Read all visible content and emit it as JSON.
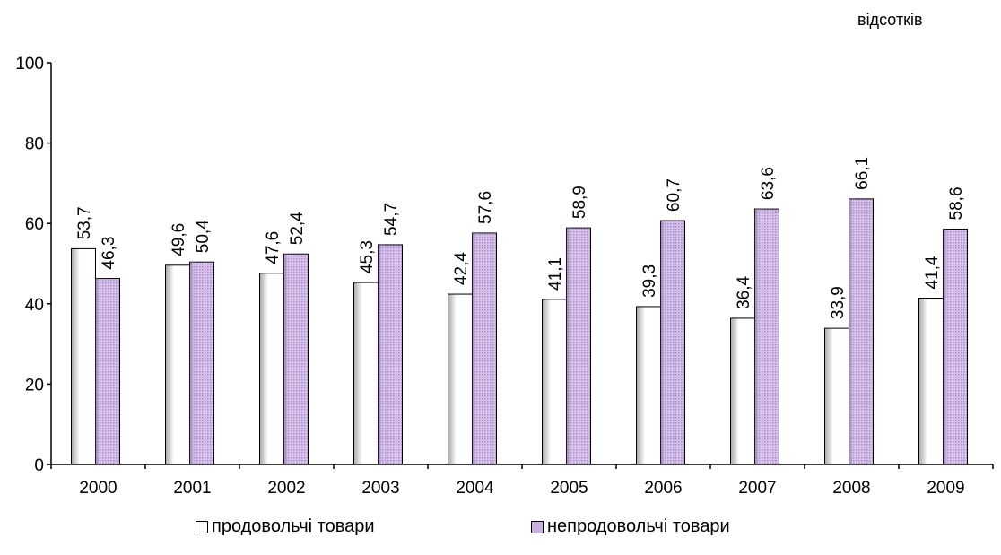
{
  "chart_data": {
    "type": "bar",
    "unit_label": "відсотків",
    "categories": [
      "2000",
      "2001",
      "2002",
      "2003",
      "2004",
      "2005",
      "2006",
      "2007",
      "2008",
      "2009"
    ],
    "series": [
      {
        "name": "продовольчі товари",
        "values": [
          53.7,
          49.6,
          47.6,
          45.3,
          42.4,
          41.1,
          39.3,
          36.4,
          33.9,
          41.4
        ],
        "data_labels": [
          "53,7",
          "49,6",
          "47,6",
          "45,3",
          "42,4",
          "41,1",
          "39,3",
          "36,4",
          "33,9",
          "41,4"
        ],
        "color": "#ffffff"
      },
      {
        "name": "непродовольчі товари",
        "values": [
          46.3,
          50.4,
          52.4,
          54.7,
          57.6,
          58.9,
          60.7,
          63.6,
          66.1,
          58.6
        ],
        "data_labels": [
          "46,3",
          "50,4",
          "52,4",
          "54,7",
          "57,6",
          "58,9",
          "60,7",
          "63,6",
          "66,1",
          "58,6"
        ],
        "color": "#c9b0e0"
      }
    ],
    "ylim": [
      0,
      100
    ],
    "yticks": [
      "0",
      "20",
      "40",
      "60",
      "80",
      "100"
    ],
    "grid": false,
    "legend": "bottom"
  }
}
